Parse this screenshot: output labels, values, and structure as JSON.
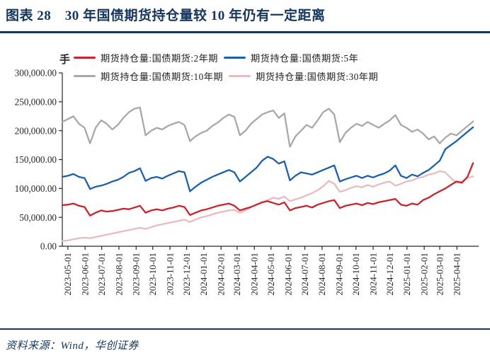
{
  "header": {
    "title": "图表 28　30 年国债期货持仓量较 10 年仍有一定距离"
  },
  "footer": {
    "source": "资料来源：Wind，华创证券"
  },
  "colors": {
    "navy": "#16365C",
    "red": "#C9242B",
    "blue": "#1C5FAD",
    "gray": "#A8A8A8",
    "pink": "#E7BCC1",
    "axis": "#262626"
  },
  "chart_data": {
    "type": "line",
    "title": "",
    "xlabel": "",
    "ylabel": "",
    "unit_label": "手",
    "grid": false,
    "legend_position": "top",
    "legend_rows": [
      [
        0,
        1
      ],
      [
        2,
        3
      ]
    ],
    "draw_order": [
      2,
      3,
      1,
      0
    ],
    "ylim": [
      0,
      300000
    ],
    "y_ticks": [
      {
        "value": 0,
        "label": "0.00"
      },
      {
        "value": 50000,
        "label": "50,000.00"
      },
      {
        "value": 100000,
        "label": "100,000.00"
      },
      {
        "value": 150000,
        "label": "150,000.00"
      },
      {
        "value": 200000,
        "label": "200,000.00"
      },
      {
        "value": 250000,
        "label": "250,000.00"
      },
      {
        "value": 300000,
        "label": "300,000.00"
      }
    ],
    "x_tick_days": [
      0,
      31,
      61,
      92,
      123,
      153,
      184,
      214,
      245,
      276,
      305,
      336,
      366,
      397,
      427,
      458,
      489,
      519,
      550,
      580,
      611,
      642,
      670,
      701
    ],
    "x_tick_labels": [
      "2023-05-01",
      "2023-06-01",
      "2023-07-01",
      "2023-08-01",
      "2023-09-01",
      "2023-10-01",
      "2023-11-01",
      "2023-12-01",
      "2024-01-01",
      "2024-02-01",
      "2024-03-01",
      "2024-04-01",
      "2024-05-01",
      "2024-06-01",
      "2024-07-01",
      "2024-08-01",
      "2024-09-01",
      "2024-10-01",
      "2024-11-01",
      "2024-12-01",
      "2025-01-01",
      "2025-02-01",
      "2025-03-01",
      "2025-04-01"
    ],
    "x_domain_days": [
      -10,
      735
    ],
    "sample_start_day": -10,
    "sample_step_days": 10,
    "series": [
      {
        "id": "2y",
        "name": "期货持仓量:国债期货:2年期",
        "color_key": "red",
        "values": [
          71000,
          72000,
          74000,
          70000,
          68000,
          53000,
          58000,
          62000,
          60000,
          61000,
          63000,
          65000,
          64000,
          67000,
          70000,
          58000,
          62000,
          64000,
          62000,
          65000,
          67000,
          70000,
          68000,
          54000,
          58000,
          62000,
          64000,
          67000,
          70000,
          72000,
          74000,
          70000,
          62000,
          65000,
          68000,
          72000,
          76000,
          78000,
          75000,
          72000,
          76000,
          62000,
          66000,
          68000,
          70000,
          67000,
          72000,
          75000,
          78000,
          80000,
          66000,
          70000,
          72000,
          74000,
          71000,
          75000,
          73000,
          76000,
          78000,
          80000,
          82000,
          72000,
          70000,
          74000,
          72000,
          80000,
          84000,
          90000,
          95000,
          100000,
          106000,
          112000,
          110000,
          120000,
          144000
        ]
      },
      {
        "id": "5y",
        "name": "期货持仓量:国债期货:5年",
        "color_key": "blue",
        "values": [
          120000,
          122000,
          125000,
          120000,
          118000,
          99000,
          103000,
          105000,
          108000,
          112000,
          115000,
          120000,
          127000,
          130000,
          135000,
          113000,
          118000,
          120000,
          117000,
          122000,
          126000,
          130000,
          128000,
          95000,
          103000,
          110000,
          115000,
          120000,
          124000,
          128000,
          132000,
          128000,
          112000,
          120000,
          128000,
          136000,
          148000,
          155000,
          151000,
          143000,
          147000,
          114000,
          122000,
          128000,
          126000,
          124000,
          128000,
          132000,
          136000,
          140000,
          112000,
          116000,
          119000,
          122000,
          118000,
          122000,
          119000,
          123000,
          126000,
          131000,
          140000,
          122000,
          118000,
          124000,
          121000,
          127000,
          132000,
          140000,
          148000,
          168000,
          175000,
          182000,
          190000,
          198000,
          206000
        ]
      },
      {
        "id": "10y",
        "name": "期货持仓量:国债期货:10年期",
        "color_key": "gray",
        "values": [
          215000,
          220000,
          225000,
          212000,
          205000,
          178000,
          205000,
          218000,
          212000,
          202000,
          210000,
          222000,
          232000,
          238000,
          240000,
          192000,
          200000,
          205000,
          202000,
          208000,
          212000,
          215000,
          210000,
          182000,
          190000,
          196000,
          200000,
          208000,
          214000,
          222000,
          228000,
          224000,
          192000,
          200000,
          212000,
          220000,
          228000,
          232000,
          235000,
          222000,
          230000,
          172000,
          190000,
          200000,
          210000,
          205000,
          218000,
          232000,
          238000,
          228000,
          180000,
          196000,
          205000,
          212000,
          208000,
          215000,
          210000,
          205000,
          212000,
          218000,
          227000,
          210000,
          205000,
          198000,
          202000,
          195000,
          185000,
          190000,
          178000,
          188000,
          195000,
          192000,
          200000,
          208000,
          216000
        ]
      },
      {
        "id": "30y",
        "name": "期货持仓量:国债期货:30年期",
        "color_key": "pink",
        "values": [
          9000,
          10000,
          12000,
          14000,
          15000,
          14000,
          16000,
          18000,
          20000,
          22000,
          24000,
          26000,
          28000,
          30000,
          32000,
          30000,
          33000,
          36000,
          38000,
          40000,
          42000,
          44000,
          46000,
          42000,
          46000,
          50000,
          52000,
          55000,
          58000,
          60000,
          62000,
          63000,
          58000,
          62000,
          68000,
          72000,
          76000,
          80000,
          84000,
          82000,
          86000,
          78000,
          81000,
          84000,
          88000,
          92000,
          97000,
          104000,
          113000,
          108000,
          94000,
          97000,
          101000,
          104000,
          102000,
          106000,
          103000,
          107000,
          110000,
          112000,
          105000,
          108000,
          112000,
          114000,
          118000,
          120000,
          124000,
          126000,
          130000,
          128000,
          118000,
          110000,
          112000,
          118000,
          121000
        ]
      }
    ]
  }
}
